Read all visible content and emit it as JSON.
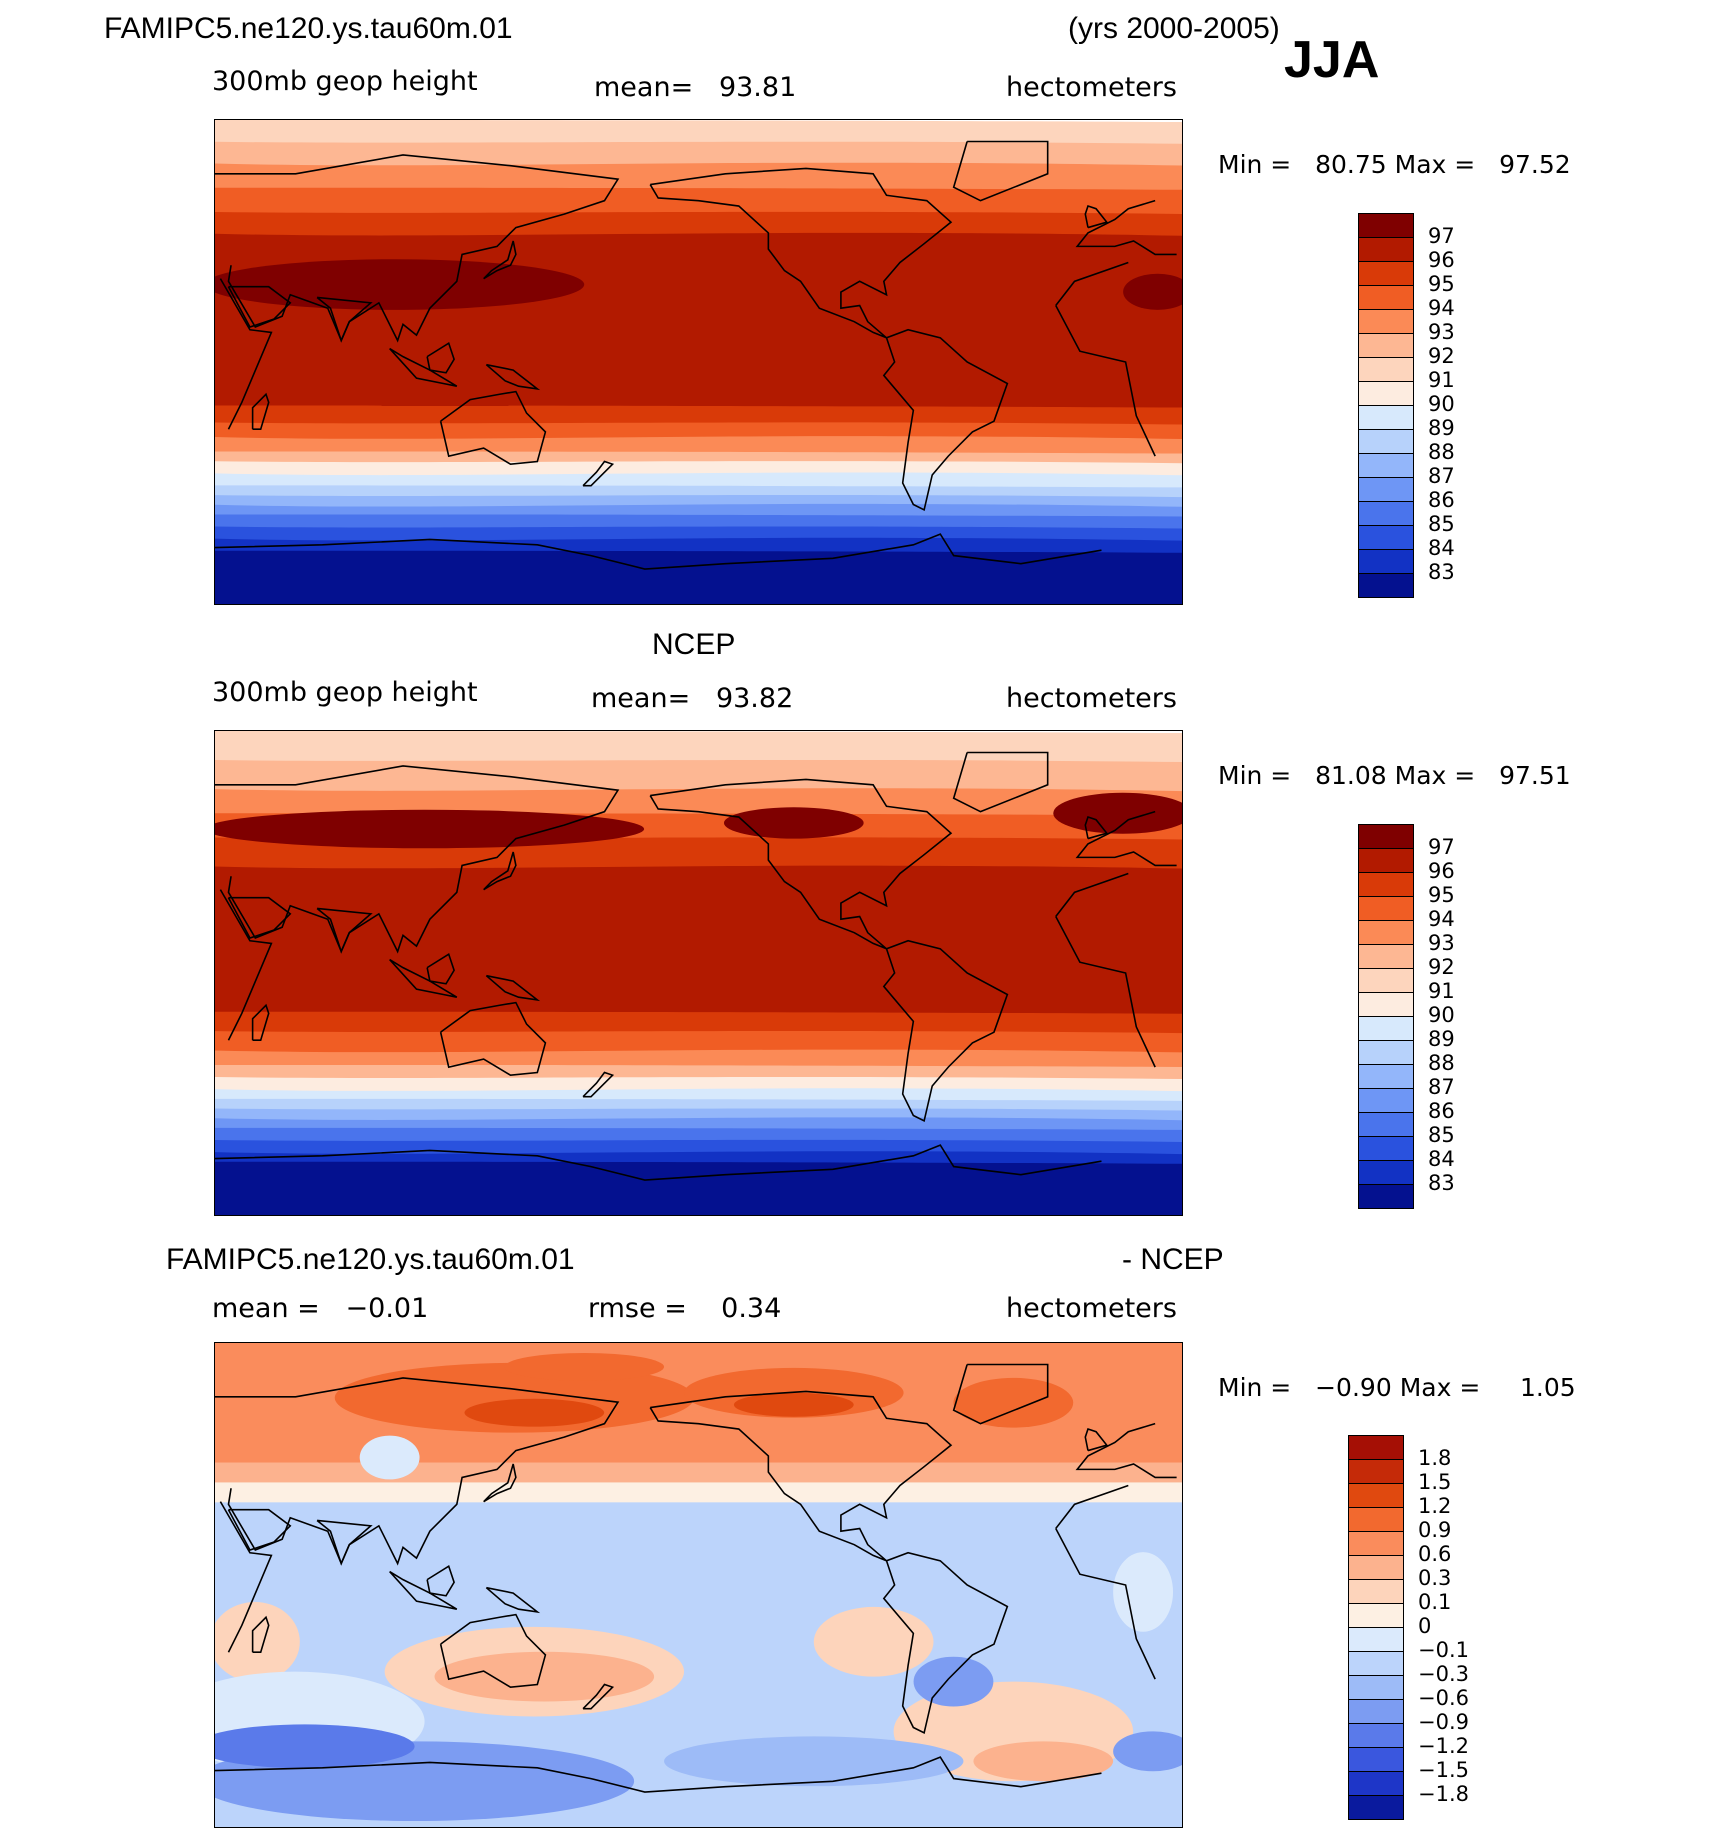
{
  "header": {
    "case_name": "FAMIPC5.ne120.ys.tau60m.01",
    "years": "(yrs 2000-2005)",
    "season": "JJA"
  },
  "chart_data": [
    {
      "type": "heatmap",
      "title": "FAMIPC5.ne120.ys.tau60m.01",
      "variable": "300mb geop height",
      "mean_label": "mean=",
      "mean": "93.81",
      "units": "hectometers",
      "min_label": "Min =",
      "min": "80.75",
      "max_label": "Max =",
      "max": "97.52",
      "levels": [
        "97",
        "96",
        "95",
        "94",
        "93",
        "92",
        "91",
        "90",
        "89",
        "88",
        "87",
        "86",
        "85",
        "84",
        "83"
      ],
      "colors": [
        "#7f0000",
        "#b21a00",
        "#d93a08",
        "#f05d24",
        "#fb8a56",
        "#fdb793",
        "#fdd5bd",
        "#fdece0",
        "#d7e9fc",
        "#b7d2fb",
        "#93b6fa",
        "#6e96f5",
        "#4a74ec",
        "#2a52de",
        "#1232c4",
        "#04118f"
      ]
    },
    {
      "type": "heatmap",
      "title": "NCEP",
      "variable": "300mb geop height",
      "mean_label": "mean=",
      "mean": "93.82",
      "units": "hectometers",
      "min_label": "Min =",
      "min": "81.08",
      "max_label": "Max =",
      "max": "97.51",
      "levels": [
        "97",
        "96",
        "95",
        "94",
        "93",
        "92",
        "91",
        "90",
        "89",
        "88",
        "87",
        "86",
        "85",
        "84",
        "83"
      ],
      "colors": [
        "#7f0000",
        "#b21a00",
        "#d93a08",
        "#f05d24",
        "#fb8a56",
        "#fdb793",
        "#fdd5bd",
        "#fdece0",
        "#d7e9fc",
        "#b7d2fb",
        "#93b6fa",
        "#6e96f5",
        "#4a74ec",
        "#2a52de",
        "#1232c4",
        "#04118f"
      ]
    },
    {
      "type": "heatmap",
      "title": "FAMIPC5.ne120.ys.tau60m.01",
      "title_suffix": "- NCEP",
      "mean_label": "mean =",
      "mean": "−0.01",
      "rmse_label": "rmse =",
      "rmse": "0.34",
      "units": "hectometers",
      "min_label": "Min =",
      "min": "−0.90",
      "max_label": "Max =",
      "max": "1.05",
      "levels": [
        "1.8",
        "1.5",
        "1.2",
        "0.9",
        "0.6",
        "0.3",
        "0.1",
        "0",
        "−0.1",
        "−0.3",
        "−0.6",
        "−0.9",
        "−1.2",
        "−1.5",
        "−1.8"
      ],
      "colors": [
        "#a50f05",
        "#c52a08",
        "#e0490f",
        "#f2692f",
        "#fa8c5c",
        "#fcb28e",
        "#fdd4bb",
        "#fdf0e3",
        "#dbeafc",
        "#bcd4fb",
        "#9dbbf7",
        "#7c9cf2",
        "#5a7aea",
        "#3a57de",
        "#1e36c8",
        "#0a1a9e"
      ]
    }
  ]
}
